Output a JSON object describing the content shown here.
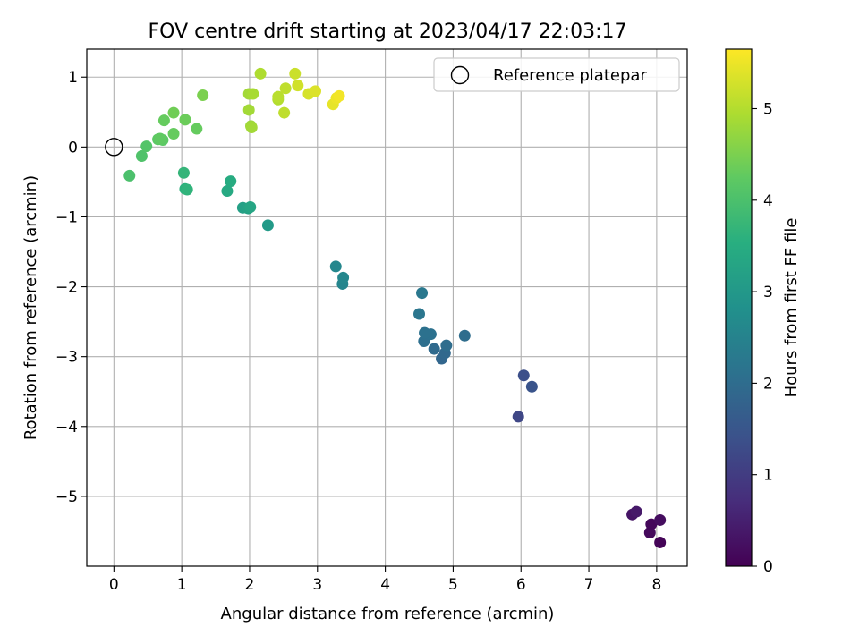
{
  "chart_data": {
    "type": "scatter",
    "title": "FOV centre drift starting at 2023/04/17 22:03:17",
    "xlabel": "Angular distance from reference (arcmin)",
    "ylabel": "Rotation from reference (arcmin)",
    "xlim": [
      -0.4,
      8.45
    ],
    "ylim": [
      -6.0,
      1.4
    ],
    "xticks": [
      0,
      1,
      2,
      3,
      4,
      5,
      6,
      7,
      8
    ],
    "xtick_labels": [
      "0",
      "1",
      "2",
      "3",
      "4",
      "5",
      "6",
      "7",
      "8"
    ],
    "yticks": [
      1,
      0,
      -1,
      -2,
      -3,
      -4,
      -5
    ],
    "ytick_labels": [
      "1",
      "0",
      "−1",
      "−2",
      "−3",
      "−4",
      "−5"
    ],
    "grid": true,
    "legend": {
      "placement": "top-right",
      "entries": [
        {
          "label": "Reference platepar",
          "marker": "open-circle"
        }
      ]
    },
    "reference_point": {
      "x": 0,
      "y": 0
    },
    "colorbar": {
      "label": "Hours from first FF file",
      "colormap": "viridis",
      "range": [
        0,
        5.65
      ],
      "ticks": [
        0,
        1,
        2,
        3,
        4,
        5
      ],
      "tick_labels": [
        "0",
        "1",
        "2",
        "3",
        "4",
        "5"
      ]
    },
    "points": [
      {
        "x": 8.05,
        "y": -5.66,
        "c": 0.05
      },
      {
        "x": 7.9,
        "y": -5.52,
        "c": 0.15
      },
      {
        "x": 7.92,
        "y": -5.4,
        "c": 0.1
      },
      {
        "x": 8.05,
        "y": -5.34,
        "c": 0.2
      },
      {
        "x": 7.64,
        "y": -5.26,
        "c": 0.3
      },
      {
        "x": 7.7,
        "y": -5.22,
        "c": 0.38
      },
      {
        "x": 5.96,
        "y": -3.86,
        "c": 1.2
      },
      {
        "x": 6.04,
        "y": -3.27,
        "c": 1.35
      },
      {
        "x": 6.16,
        "y": -3.43,
        "c": 1.45
      },
      {
        "x": 4.83,
        "y": -3.03,
        "c": 1.85
      },
      {
        "x": 4.88,
        "y": -2.95,
        "c": 1.9
      },
      {
        "x": 4.72,
        "y": -2.89,
        "c": 1.95
      },
      {
        "x": 4.9,
        "y": -2.84,
        "c": 2.0
      },
      {
        "x": 4.57,
        "y": -2.78,
        "c": 2.05
      },
      {
        "x": 5.17,
        "y": -2.7,
        "c": 2.0
      },
      {
        "x": 4.67,
        "y": -2.68,
        "c": 2.1
      },
      {
        "x": 4.58,
        "y": -2.66,
        "c": 2.1
      },
      {
        "x": 4.5,
        "y": -2.39,
        "c": 2.2
      },
      {
        "x": 4.54,
        "y": -2.09,
        "c": 2.25
      },
      {
        "x": 3.37,
        "y": -1.96,
        "c": 2.55
      },
      {
        "x": 3.38,
        "y": -1.87,
        "c": 2.6
      },
      {
        "x": 3.27,
        "y": -1.71,
        "c": 2.6
      },
      {
        "x": 2.27,
        "y": -1.12,
        "c": 3.05
      },
      {
        "x": 1.9,
        "y": -0.87,
        "c": 3.2
      },
      {
        "x": 1.98,
        "y": -0.88,
        "c": 3.25
      },
      {
        "x": 2.01,
        "y": -0.86,
        "c": 3.3
      },
      {
        "x": 1.67,
        "y": -0.63,
        "c": 3.4
      },
      {
        "x": 1.72,
        "y": -0.49,
        "c": 3.45
      },
      {
        "x": 1.05,
        "y": -0.6,
        "c": 3.6
      },
      {
        "x": 1.08,
        "y": -0.61,
        "c": 3.65
      },
      {
        "x": 1.03,
        "y": -0.37,
        "c": 3.7
      },
      {
        "x": 0.23,
        "y": -0.41,
        "c": 4.0
      },
      {
        "x": 0.41,
        "y": -0.13,
        "c": 4.05
      },
      {
        "x": 0.48,
        "y": 0.01,
        "c": 4.1
      },
      {
        "x": 0.65,
        "y": 0.11,
        "c": 4.2
      },
      {
        "x": 0.72,
        "y": 0.1,
        "c": 4.2
      },
      {
        "x": 0.68,
        "y": 0.12,
        "c": 4.25
      },
      {
        "x": 0.88,
        "y": 0.19,
        "c": 4.3
      },
      {
        "x": 1.22,
        "y": 0.26,
        "c": 4.3
      },
      {
        "x": 0.74,
        "y": 0.38,
        "c": 4.3
      },
      {
        "x": 1.05,
        "y": 0.39,
        "c": 4.35
      },
      {
        "x": 0.88,
        "y": 0.49,
        "c": 4.4
      },
      {
        "x": 1.31,
        "y": 0.74,
        "c": 4.5
      },
      {
        "x": 2.02,
        "y": 0.3,
        "c": 4.8
      },
      {
        "x": 2.03,
        "y": 0.28,
        "c": 4.85
      },
      {
        "x": 1.99,
        "y": 0.53,
        "c": 4.85
      },
      {
        "x": 1.99,
        "y": 0.76,
        "c": 4.85
      },
      {
        "x": 2.05,
        "y": 0.76,
        "c": 4.9
      },
      {
        "x": 2.16,
        "y": 1.05,
        "c": 4.95
      },
      {
        "x": 2.42,
        "y": 0.68,
        "c": 5.0
      },
      {
        "x": 2.42,
        "y": 0.72,
        "c": 5.05
      },
      {
        "x": 2.51,
        "y": 0.49,
        "c": 5.1
      },
      {
        "x": 2.53,
        "y": 0.84,
        "c": 5.1
      },
      {
        "x": 2.67,
        "y": 1.05,
        "c": 5.2
      },
      {
        "x": 2.71,
        "y": 0.88,
        "c": 5.25
      },
      {
        "x": 2.87,
        "y": 0.76,
        "c": 5.3
      },
      {
        "x": 2.97,
        "y": 0.8,
        "c": 5.35
      },
      {
        "x": 3.23,
        "y": 0.61,
        "c": 5.45
      },
      {
        "x": 3.28,
        "y": 0.7,
        "c": 5.5
      },
      {
        "x": 3.32,
        "y": 0.73,
        "c": 5.55
      }
    ]
  }
}
